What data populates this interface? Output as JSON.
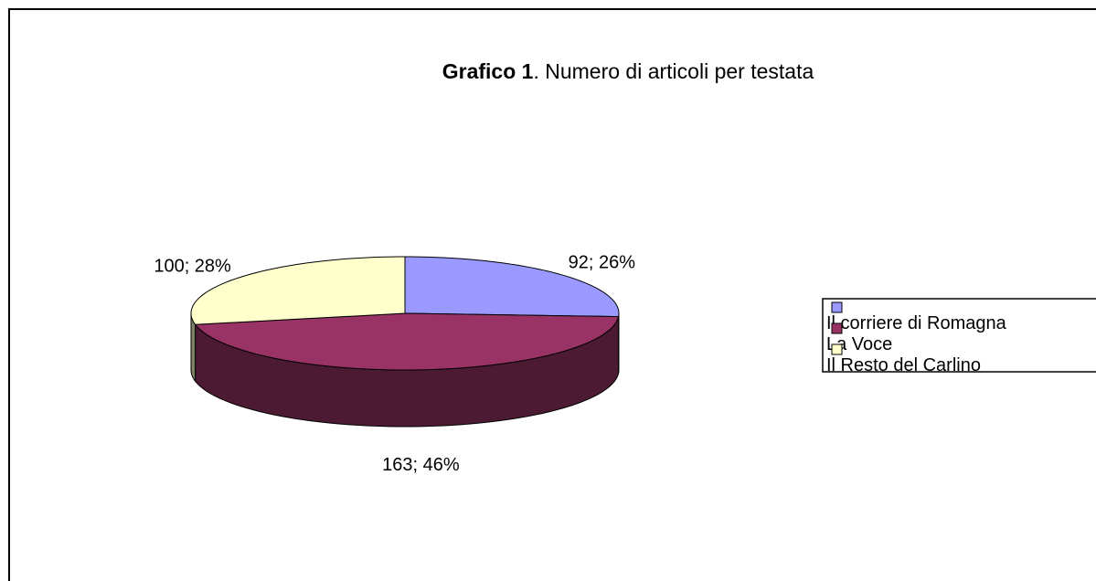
{
  "chart_data": {
    "type": "pie",
    "title": [
      "Grafico 1",
      ". Numero di articoli per testata"
    ],
    "categories": [
      "Il corriere di Romagna",
      "La Voce",
      "Il Resto del Carlino"
    ],
    "values": [
      92,
      163,
      100
    ],
    "value_labels": [
      "92; 26%",
      "163; 46%",
      "100; 28%"
    ],
    "colors": [
      "#9999ff",
      "#993366",
      "#ffffcc"
    ],
    "legend": "right"
  }
}
